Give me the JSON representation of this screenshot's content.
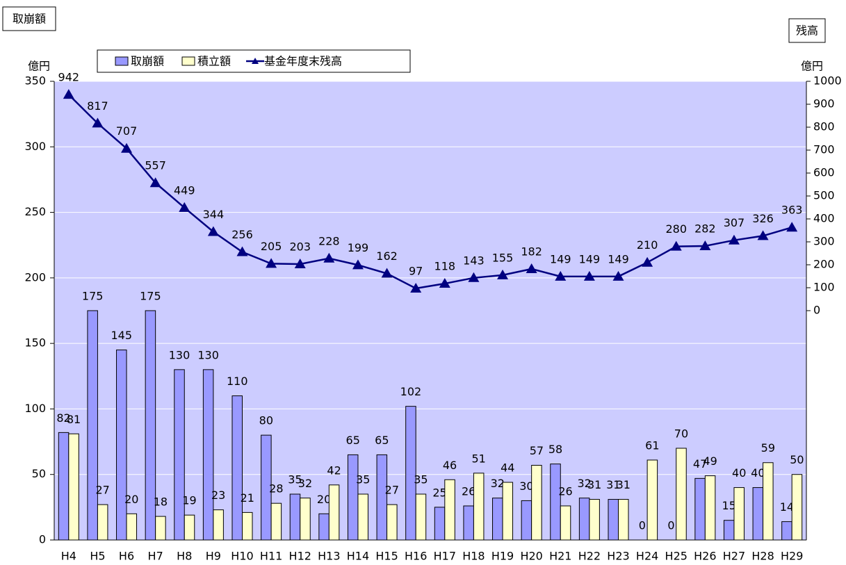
{
  "chart_data": {
    "type": "bar_line",
    "y_title": "取崩額",
    "y2_title": "残高",
    "y_unit": "億円",
    "y2_unit": "億円",
    "categories": [
      "H4",
      "H5",
      "H6",
      "H7",
      "H8",
      "H9",
      "H10",
      "H11",
      "H12",
      "H13",
      "H14",
      "H15",
      "H16",
      "H17",
      "H18",
      "H19",
      "H20",
      "H21",
      "H22",
      "H23",
      "H24",
      "H25",
      "H26",
      "H27",
      "H28",
      "H29"
    ],
    "series": [
      {
        "name": "取崩額",
        "type": "bar",
        "color": "#9999ff",
        "values": [
          82,
          175,
          145,
          175,
          130,
          130,
          110,
          80,
          35,
          20,
          65,
          65,
          102,
          25,
          26,
          32,
          30,
          58,
          32,
          31,
          0,
          0,
          47,
          15,
          40,
          14
        ]
      },
      {
        "name": "積立額",
        "type": "bar",
        "color": "#ffffcc",
        "values": [
          81,
          27,
          20,
          18,
          19,
          23,
          21,
          28,
          32,
          42,
          35,
          27,
          35,
          46,
          51,
          44,
          57,
          26,
          31,
          31,
          61,
          70,
          49,
          40,
          59,
          50
        ]
      },
      {
        "name": "基金年度末残高",
        "type": "line",
        "axis": "y2",
        "color": "#000080",
        "values": [
          942,
          817,
          707,
          557,
          449,
          344,
          256,
          205,
          203,
          228,
          199,
          162,
          97,
          118,
          143,
          155,
          182,
          149,
          149,
          149,
          210,
          280,
          282,
          307,
          326,
          363
        ]
      }
    ],
    "ylim": [
      0,
      350
    ],
    "yticks": [
      0,
      50,
      100,
      150,
      200,
      250,
      300,
      350
    ],
    "y2lim": [
      -1000,
      1000
    ],
    "y2ticks": [
      0,
      100,
      200,
      300,
      400,
      500,
      600,
      700,
      800,
      900,
      1000
    ],
    "grid": true,
    "plot_background": "#ccccff"
  }
}
